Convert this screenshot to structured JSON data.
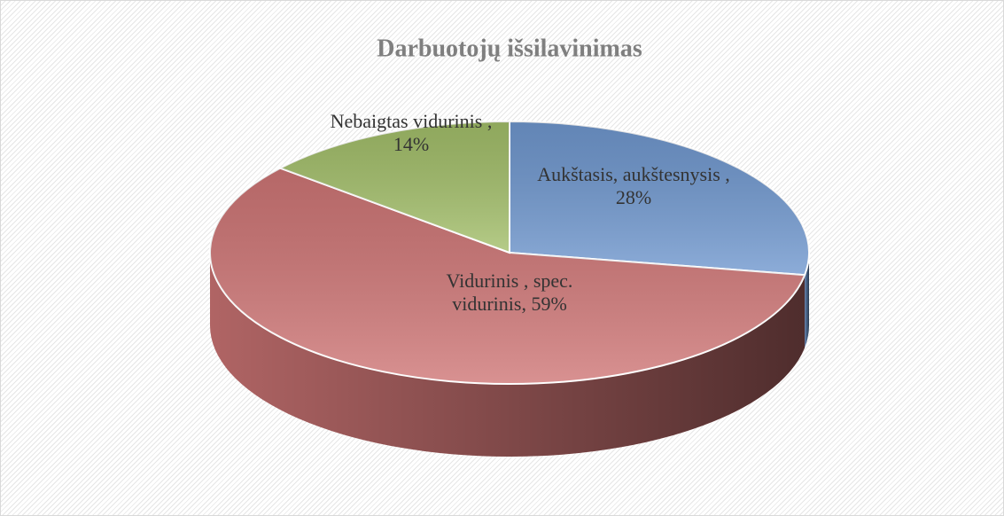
{
  "chart_data": {
    "type": "pie",
    "title": "Darbuotojų išsilavinimas",
    "categories": [
      "Aukštasis, aukštesnysis",
      "Vidurinis , spec. vidurinis",
      "Nebaigtas vidurinis"
    ],
    "values": [
      28,
      59,
      14
    ],
    "value_labels": [
      ", 28%",
      ", 59%",
      ", 14%"
    ],
    "colors": [
      "#7098cf",
      "#cf7676",
      "#a3bf6a"
    ]
  }
}
